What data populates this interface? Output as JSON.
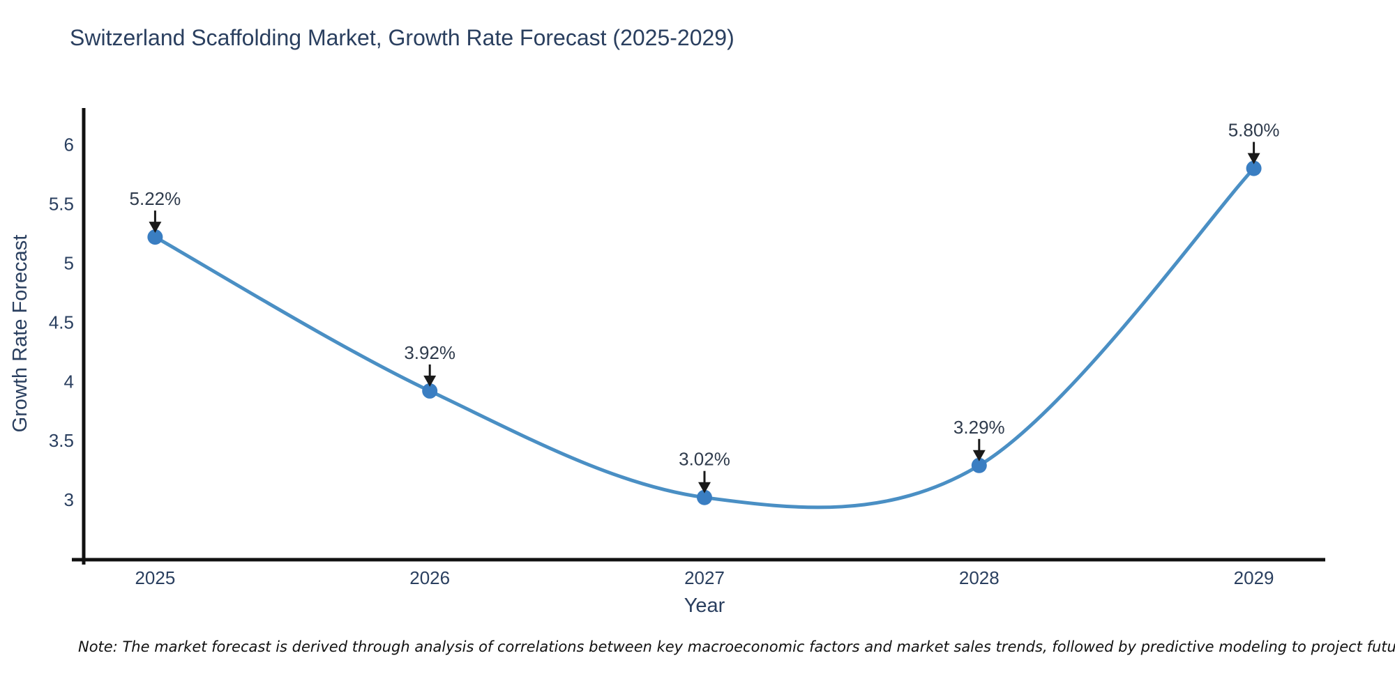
{
  "title": "Switzerland Scaffolding Market, Growth Rate Forecast (2025-2029)",
  "note": "Note: The market forecast is derived through analysis of correlations between key macroeconomic factors and market sales trends, followed by predictive modeling to project future sales",
  "chart_data": {
    "type": "line",
    "title": "Switzerland Scaffolding Market, Growth Rate Forecast (2025-2029)",
    "xlabel": "Year",
    "ylabel": "Growth Rate Forecast",
    "line_shape": "spline",
    "grid": false,
    "legend": "none",
    "categories": [
      "2025",
      "2026",
      "2027",
      "2028",
      "2029"
    ],
    "x": [
      2025,
      2026,
      2027,
      2028,
      2029
    ],
    "series": [
      {
        "name": "Growth Rate Forecast (%)",
        "values": [
          5.22,
          3.92,
          3.02,
          3.29,
          5.8
        ]
      }
    ],
    "point_labels": [
      "5.22%",
      "3.92%",
      "3.02%",
      "3.29%",
      "5.80%"
    ],
    "yticks": [
      3,
      3.5,
      4,
      4.5,
      5,
      5.5,
      6
    ],
    "ytick_labels": [
      "3",
      "3.5",
      "4",
      "4.5",
      "5",
      "5.5",
      "6"
    ],
    "ylim": [
      2.5,
      6.31
    ],
    "xlim": [
      2024.74,
      2029.26
    ],
    "colors": {
      "line": "#4a8fc4",
      "marker": "#3a7ec2",
      "arrow": "#1a1a1a",
      "axis": "#111111",
      "text": "#2a3f5f",
      "note": "#111111",
      "background": "#ffffff"
    }
  }
}
